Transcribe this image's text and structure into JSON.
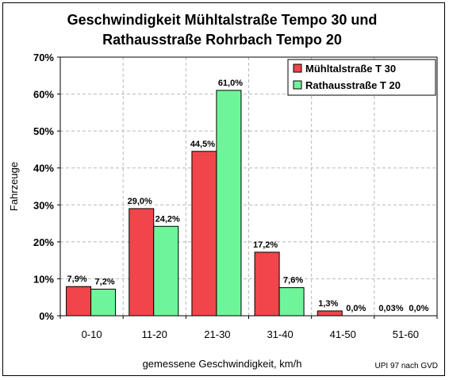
{
  "chart_data": {
    "type": "bar",
    "title_lines": [
      "Geschwindigkeit Mühltalstraße Tempo 30 und",
      "Rathausstraße Rohrbach Tempo 20"
    ],
    "xlabel": "gemessene Geschwindigkeit, km/h",
    "ylabel": "Fahrzeuge",
    "categories": [
      "0-10",
      "11-20",
      "21-30",
      "31-40",
      "41-50",
      "51-60"
    ],
    "ylim": [
      0,
      70
    ],
    "yticks": [
      0,
      10,
      20,
      30,
      40,
      50,
      60,
      70
    ],
    "ytick_labels": [
      "0%",
      "10%",
      "20%",
      "30%",
      "40%",
      "50%",
      "60%",
      "70%"
    ],
    "grid": true,
    "legend_position": "top-right",
    "series": [
      {
        "name": "Mühltalstraße T 30",
        "color": "#f0454a",
        "values": [
          7.9,
          29.0,
          44.5,
          17.2,
          1.3,
          0.03
        ],
        "labels": [
          "7,9%",
          "29,0%",
          "44,5%",
          "17,2%",
          "1,3%",
          "0,03%"
        ]
      },
      {
        "name": "Rathausstraße T 20",
        "color": "#6ef59a",
        "values": [
          7.2,
          24.2,
          61.0,
          7.6,
          0.0,
          0.0
        ],
        "labels": [
          "7,2%",
          "24,2%",
          "61,0%",
          "7,6%",
          "0,0%",
          "0,0%"
        ]
      }
    ],
    "credit": "UPI 97 nach GVD"
  }
}
